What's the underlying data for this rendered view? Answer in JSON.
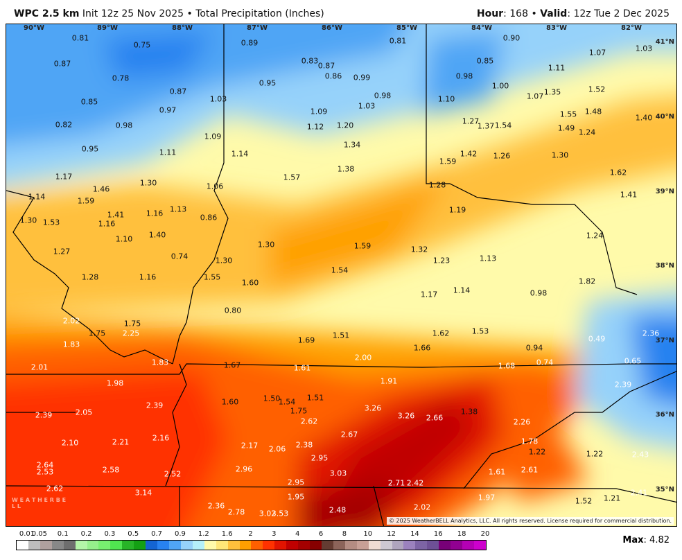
{
  "header": {
    "model": "WPC 2.5 km",
    "init": "Init 12z 25 Nov 2025",
    "separator": "•",
    "product": "Total Precipitation (Inches)",
    "hour_label": "Hour",
    "hour": "168",
    "valid_label": "Valid",
    "valid": "12z Tue 2 Dec 2025"
  },
  "map": {
    "longitudes": [
      "90°W",
      "89°W",
      "88°W",
      "87°W",
      "86°W",
      "85°W",
      "84°W",
      "83°W",
      "82°W"
    ],
    "latitudes": [
      "41°N",
      "40°N",
      "39°N",
      "38°N",
      "37°N",
      "36°N",
      "35°N"
    ],
    "values": [
      "0.81",
      "0.75",
      "0.87",
      "0.78",
      "0.85",
      "0.87",
      "0.97",
      "0.82",
      "0.98",
      "0.95",
      "1.11",
      "1.17",
      "1.46",
      "1.30",
      "1.14",
      "1.59",
      "1.53",
      "1.30",
      "1.41",
      "1.16",
      "1.16",
      "1.13",
      "1.10",
      "1.40",
      "1.27",
      "1.28",
      "1.16",
      "0.74",
      "0.89",
      "0.95",
      "1.03",
      "1.09",
      "1.14",
      "1.06",
      "0.86",
      "0.83",
      "0.86",
      "0.87",
      "0.99",
      "0.98",
      "1.03",
      "1.09",
      "1.12",
      "1.20",
      "1.34",
      "1.38",
      "1.57",
      "1.30",
      "1.30",
      "1.55",
      "1.60",
      "1.59",
      "1.54",
      "0.80",
      "0.81",
      "0.90",
      "0.85",
      "0.98",
      "1.10",
      "1.00",
      "1.11",
      "1.07",
      "1.03",
      "1.07",
      "1.35",
      "1.52",
      "1.55",
      "1.48",
      "1.40",
      "1.49",
      "1.24",
      "1.27",
      "1.37",
      "1.54",
      "1.42",
      "1.59",
      "1.26",
      "1.30",
      "1.62",
      "1.28",
      "1.19",
      "1.41",
      "1.32",
      "1.23",
      "1.13",
      "1.24",
      "1.17",
      "1.14",
      "0.98",
      "1.82",
      "2.02",
      "1.75",
      "1.75",
      "2.25",
      "1.83",
      "1.69",
      "1.51",
      "1.62",
      "1.53",
      "1.66",
      "0.94",
      "0.49",
      "2.36",
      "2.01",
      "1.83",
      "1.67",
      "1.61",
      "2.00",
      "1.68",
      "0.74",
      "0.65",
      "2.39",
      "1.98",
      "1.91",
      "1.60",
      "1.50",
      "1.54",
      "1.51",
      "1.75",
      "2.62",
      "2.39",
      "2.05",
      "2.39",
      "3.26",
      "3.26",
      "2.66",
      "1.38",
      "2.26",
      "2.10",
      "2.21",
      "2.16",
      "2.17",
      "2.06",
      "2.38",
      "2.67",
      "1.78",
      "1.22",
      "1.22",
      "2.43",
      "2.64",
      "2.53",
      "2.58",
      "2.52",
      "2.96",
      "2.95",
      "3.03",
      "2.95",
      "2.71",
      "2.42",
      "1.61",
      "2.61",
      "2.62",
      "3.14",
      "1.95",
      "1.97",
      "1.52",
      "1.21",
      "2.41",
      "2.36",
      "2.78",
      "3.02",
      "3.53",
      "2.48",
      "2.02"
    ],
    "copyright": "© 2025 WeatherBELL Analytics, LLC. All rights reserved. License required for commercial distribution.",
    "logo_text": "WEATHERBELL"
  },
  "legend": {
    "ticks": [
      "0.01",
      "0.05",
      "0.1",
      "0.2",
      "0.3",
      "0.5",
      "0.7",
      "0.9",
      "1.2",
      "1.6",
      "2",
      "3",
      "4",
      "6",
      "8",
      "10",
      "12",
      "14",
      "16",
      "18",
      "20"
    ],
    "colors": [
      "#ffffff",
      "#bdbdbd",
      "#b0a09e",
      "#888888",
      "#6e6e6e",
      "#b4f5a8",
      "#96f08c",
      "#78f070",
      "#50e650",
      "#28b428",
      "#14a014",
      "#1464d2",
      "#2882f0",
      "#50a5f5",
      "#96d2fa",
      "#b4f0fa",
      "#fffaaa",
      "#ffe678",
      "#ffc03c",
      "#ffa000",
      "#ff6000",
      "#ff3200",
      "#e11400",
      "#c00000",
      "#a50000",
      "#870000",
      "#643c32",
      "#8c645a",
      "#b48c82",
      "#c8a096",
      "#f0dcd2",
      "#cdc8d2",
      "#afa5be",
      "#9b82be",
      "#7d64a5",
      "#6e5096",
      "#780078",
      "#910091",
      "#b400b4",
      "#cd00cd"
    ]
  },
  "max": {
    "label": "Max",
    "value": "4.82"
  }
}
